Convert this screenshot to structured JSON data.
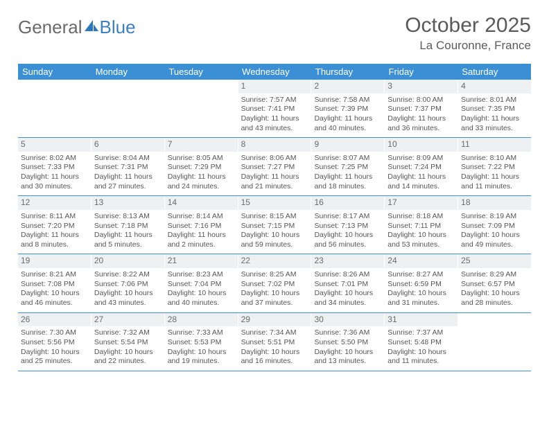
{
  "logo": {
    "general": "General",
    "blue": "Blue"
  },
  "title": "October 2025",
  "location": "La Couronne, France",
  "colors": {
    "accent": "#3b8fd4",
    "text": "#5a5a5a",
    "cellbg": "#eef0f2"
  },
  "dayHeaders": [
    "Sunday",
    "Monday",
    "Tuesday",
    "Wednesday",
    "Thursday",
    "Friday",
    "Saturday"
  ],
  "weeks": [
    [
      null,
      null,
      null,
      {
        "n": "1",
        "sr": "7:57 AM",
        "ss": "7:41 PM",
        "dh": "11",
        "dm": "43"
      },
      {
        "n": "2",
        "sr": "7:58 AM",
        "ss": "7:39 PM",
        "dh": "11",
        "dm": "40"
      },
      {
        "n": "3",
        "sr": "8:00 AM",
        "ss": "7:37 PM",
        "dh": "11",
        "dm": "36"
      },
      {
        "n": "4",
        "sr": "8:01 AM",
        "ss": "7:35 PM",
        "dh": "11",
        "dm": "33"
      }
    ],
    [
      {
        "n": "5",
        "sr": "8:02 AM",
        "ss": "7:33 PM",
        "dh": "11",
        "dm": "30"
      },
      {
        "n": "6",
        "sr": "8:04 AM",
        "ss": "7:31 PM",
        "dh": "11",
        "dm": "27"
      },
      {
        "n": "7",
        "sr": "8:05 AM",
        "ss": "7:29 PM",
        "dh": "11",
        "dm": "24"
      },
      {
        "n": "8",
        "sr": "8:06 AM",
        "ss": "7:27 PM",
        "dh": "11",
        "dm": "21"
      },
      {
        "n": "9",
        "sr": "8:07 AM",
        "ss": "7:25 PM",
        "dh": "11",
        "dm": "18"
      },
      {
        "n": "10",
        "sr": "8:09 AM",
        "ss": "7:24 PM",
        "dh": "11",
        "dm": "14"
      },
      {
        "n": "11",
        "sr": "8:10 AM",
        "ss": "7:22 PM",
        "dh": "11",
        "dm": "11"
      }
    ],
    [
      {
        "n": "12",
        "sr": "8:11 AM",
        "ss": "7:20 PM",
        "dh": "11",
        "dm": "8"
      },
      {
        "n": "13",
        "sr": "8:13 AM",
        "ss": "7:18 PM",
        "dh": "11",
        "dm": "5"
      },
      {
        "n": "14",
        "sr": "8:14 AM",
        "ss": "7:16 PM",
        "dh": "11",
        "dm": "2"
      },
      {
        "n": "15",
        "sr": "8:15 AM",
        "ss": "7:15 PM",
        "dh": "10",
        "dm": "59"
      },
      {
        "n": "16",
        "sr": "8:17 AM",
        "ss": "7:13 PM",
        "dh": "10",
        "dm": "56"
      },
      {
        "n": "17",
        "sr": "8:18 AM",
        "ss": "7:11 PM",
        "dh": "10",
        "dm": "53"
      },
      {
        "n": "18",
        "sr": "8:19 AM",
        "ss": "7:09 PM",
        "dh": "10",
        "dm": "49"
      }
    ],
    [
      {
        "n": "19",
        "sr": "8:21 AM",
        "ss": "7:08 PM",
        "dh": "10",
        "dm": "46"
      },
      {
        "n": "20",
        "sr": "8:22 AM",
        "ss": "7:06 PM",
        "dh": "10",
        "dm": "43"
      },
      {
        "n": "21",
        "sr": "8:23 AM",
        "ss": "7:04 PM",
        "dh": "10",
        "dm": "40"
      },
      {
        "n": "22",
        "sr": "8:25 AM",
        "ss": "7:02 PM",
        "dh": "10",
        "dm": "37"
      },
      {
        "n": "23",
        "sr": "8:26 AM",
        "ss": "7:01 PM",
        "dh": "10",
        "dm": "34"
      },
      {
        "n": "24",
        "sr": "8:27 AM",
        "ss": "6:59 PM",
        "dh": "10",
        "dm": "31"
      },
      {
        "n": "25",
        "sr": "8:29 AM",
        "ss": "6:57 PM",
        "dh": "10",
        "dm": "28"
      }
    ],
    [
      {
        "n": "26",
        "sr": "7:30 AM",
        "ss": "5:56 PM",
        "dh": "10",
        "dm": "25"
      },
      {
        "n": "27",
        "sr": "7:32 AM",
        "ss": "5:54 PM",
        "dh": "10",
        "dm": "22"
      },
      {
        "n": "28",
        "sr": "7:33 AM",
        "ss": "5:53 PM",
        "dh": "10",
        "dm": "19"
      },
      {
        "n": "29",
        "sr": "7:34 AM",
        "ss": "5:51 PM",
        "dh": "10",
        "dm": "16"
      },
      {
        "n": "30",
        "sr": "7:36 AM",
        "ss": "5:50 PM",
        "dh": "10",
        "dm": "13"
      },
      {
        "n": "31",
        "sr": "7:37 AM",
        "ss": "5:48 PM",
        "dh": "10",
        "dm": "11"
      },
      null
    ]
  ],
  "labels": {
    "sunrise": "Sunrise:",
    "sunset": "Sunset:",
    "daylightA": "Daylight:",
    "hours": "hours",
    "and": "and",
    "minutes": "minutes."
  }
}
